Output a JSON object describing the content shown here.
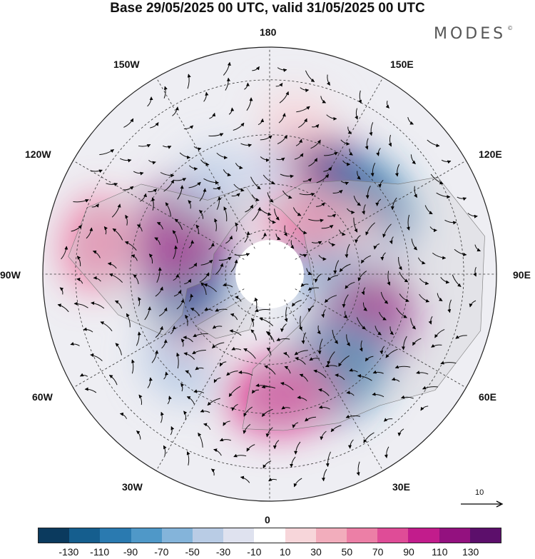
{
  "title": "Base 29/05/2025 00 UTC, valid 31/05/2025 00 UTC",
  "brand": {
    "name": "MODES",
    "mark": "©"
  },
  "longitude_labels": {
    "top": "180",
    "bottom": "0",
    "left": "90W",
    "right": "90E",
    "upper_left": "150W",
    "upper_left2": "120W",
    "upper_right": "150E",
    "upper_right2": "120E",
    "lower_left": "60W",
    "lower_left2": "30W",
    "lower_right": "60E",
    "lower_right2": "30E"
  },
  "vector_scale": {
    "value": "10"
  },
  "colorbar": {
    "colors": [
      "#0b3a5e",
      "#155e8e",
      "#2a7ab0",
      "#4f98c8",
      "#84b4da",
      "#b9cce5",
      "#dfe2ef",
      "#ffffff",
      "#f7d6da",
      "#f2adbc",
      "#ec7fa6",
      "#df4c97",
      "#c21c8c",
      "#93117f",
      "#5c0f6b"
    ],
    "ticks": [
      "-130",
      "-110",
      "-90",
      "-70",
      "-50",
      "-30",
      "-10",
      "10",
      "30",
      "50",
      "70",
      "90",
      "110",
      "130"
    ]
  },
  "anomalies": [
    {
      "lon": 150,
      "lat": 55,
      "value": 120
    },
    {
      "lon": 125,
      "lat": 52,
      "value": -100
    },
    {
      "lon": 112,
      "lat": 60,
      "value": 40
    },
    {
      "lon": 90,
      "lat": 55,
      "value": -30
    },
    {
      "lon": 115,
      "lat": 72,
      "value": -70
    },
    {
      "lon": 150,
      "lat": 68,
      "value": 60
    },
    {
      "lon": 62,
      "lat": 55,
      "value": 110
    },
    {
      "lon": 32,
      "lat": 52,
      "value": -110
    },
    {
      "lon": 5,
      "lat": 50,
      "value": 80
    },
    {
      "lon": -45,
      "lat": 48,
      "value": -40
    },
    {
      "lon": -65,
      "lat": 60,
      "value": 40
    },
    {
      "lon": -90,
      "lat": 62,
      "value": -100
    },
    {
      "lon": -115,
      "lat": 58,
      "value": 110
    },
    {
      "lon": -100,
      "lat": 35,
      "value": 60
    },
    {
      "lon": -150,
      "lat": 55,
      "value": -40
    },
    {
      "lon": -175,
      "lat": 58,
      "value": -30
    },
    {
      "lon": 170,
      "lat": 40,
      "value": 20
    }
  ]
}
